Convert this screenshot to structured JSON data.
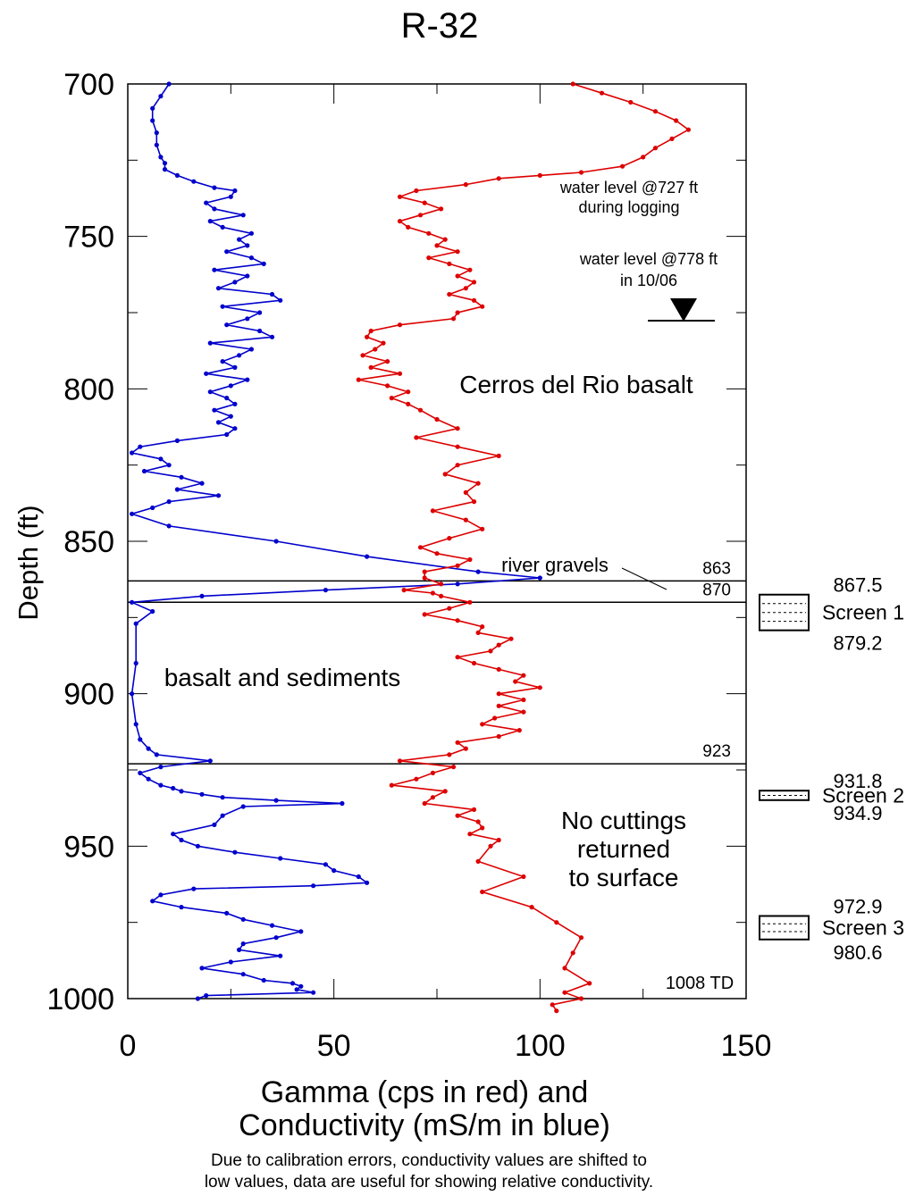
{
  "chart_data": {
    "type": "line",
    "title": "R-32",
    "xlabel_line1": "Gamma (cps in red) and",
    "xlabel_line2": "Conductivity (mS/m in blue)",
    "ylabel": "Depth (ft)",
    "xlim": [
      0,
      150
    ],
    "ylim": [
      700,
      1000
    ],
    "y_inverted": true,
    "x_ticks": [
      "0",
      "50",
      "100",
      "150"
    ],
    "y_ticks": [
      "700",
      "750",
      "800",
      "850",
      "900",
      "950",
      "1000"
    ],
    "colors": {
      "gamma": "#dd0000",
      "conductivity": "#0000cc",
      "axis": "#000000"
    },
    "series": [
      {
        "key": "conductivity",
        "x": [
          10,
          8,
          6,
          6,
          7,
          7,
          8,
          9,
          9,
          12,
          16,
          21,
          26,
          25,
          19,
          21,
          28,
          20,
          23,
          30,
          27,
          29,
          24,
          30,
          33,
          21,
          29,
          26,
          22,
          35,
          37,
          23,
          32,
          29,
          24,
          32,
          35,
          20,
          30,
          27,
          23,
          26,
          19,
          29,
          25,
          20,
          24,
          26,
          21,
          25,
          22,
          26,
          24,
          12,
          3,
          1,
          8,
          10,
          4,
          13,
          18,
          12,
          22,
          10,
          6,
          1,
          10,
          36,
          58,
          85,
          100,
          80,
          48,
          18,
          1,
          6,
          2,
          2,
          1,
          2,
          3,
          5,
          7,
          20,
          8,
          3,
          5,
          8,
          11,
          13,
          18,
          23,
          36,
          52,
          28,
          23,
          21,
          11,
          13,
          17,
          26,
          37,
          48,
          50,
          56,
          58,
          45,
          16,
          8,
          6,
          13,
          24,
          28,
          35,
          42,
          36,
          28,
          27,
          37,
          25,
          18,
          28,
          33,
          40,
          42,
          41,
          45,
          19,
          17
        ],
        "y": [
          700,
          704,
          708,
          712,
          716,
          720,
          724,
          726,
          728,
          730,
          732,
          734,
          735,
          737,
          739,
          741,
          743,
          745,
          747,
          749,
          751,
          753,
          755,
          757,
          759,
          761,
          763,
          765,
          767,
          769,
          771,
          773,
          775,
          777,
          779,
          781,
          783,
          785,
          787,
          789,
          791,
          793,
          795,
          797,
          799,
          801,
          803,
          805,
          807,
          809,
          811,
          813,
          815,
          817,
          819,
          821,
          823,
          825,
          827,
          829,
          831,
          833,
          835,
          837,
          839,
          841,
          845,
          850,
          855,
          860,
          862,
          864,
          866,
          868,
          870,
          873,
          877,
          890,
          900,
          910,
          915,
          918,
          920,
          922,
          924,
          926,
          928,
          930,
          931,
          932,
          933,
          934,
          935,
          936,
          937,
          940,
          943,
          946,
          948,
          950,
          952,
          954,
          956,
          958,
          960,
          962,
          963,
          964,
          966,
          968,
          970,
          972,
          974,
          976,
          978,
          980,
          982,
          984,
          986,
          988,
          990,
          992,
          994,
          995,
          996,
          997,
          998,
          999,
          1000
        ]
      },
      {
        "key": "gamma",
        "x": [
          108,
          115,
          122,
          128,
          133,
          136,
          132,
          128,
          125,
          120,
          110,
          100,
          90,
          82,
          70,
          66,
          72,
          76,
          71,
          66,
          68,
          73,
          77,
          75,
          80,
          73,
          78,
          83,
          80,
          84,
          82,
          78,
          84,
          86,
          80,
          79,
          66,
          59,
          58,
          62,
          60,
          57,
          63,
          59,
          66,
          56,
          63,
          68,
          64,
          68,
          71,
          75,
          80,
          70,
          80,
          90,
          80,
          77,
          85,
          82,
          84,
          74,
          82,
          86,
          78,
          71,
          75,
          83,
          80,
          72,
          72,
          76,
          67,
          74,
          76,
          83,
          78,
          72,
          80,
          86,
          85,
          93,
          90,
          88,
          80,
          84,
          90,
          96,
          94,
          100,
          90,
          96,
          90,
          96,
          89,
          86,
          95,
          90,
          80,
          82,
          78,
          66,
          79,
          74,
          70,
          64,
          77,
          74,
          72,
          84,
          80,
          85,
          86,
          83,
          90,
          88,
          85,
          96,
          86,
          98,
          104,
          110,
          108,
          106,
          112,
          106,
          110,
          103,
          104
        ],
        "y": [
          700,
          703,
          706,
          709,
          712,
          715,
          718,
          721,
          724,
          727,
          729,
          730,
          731,
          733,
          735,
          737,
          739,
          741,
          743,
          745,
          747,
          749,
          751,
          753,
          755,
          757,
          759,
          761,
          763,
          765,
          767,
          769,
          771,
          773,
          775,
          777,
          779,
          781,
          783,
          785,
          787,
          789,
          791,
          793,
          795,
          797,
          799,
          801,
          803,
          805,
          807,
          810,
          813,
          816,
          819,
          822,
          825,
          828,
          831,
          834,
          837,
          840,
          843,
          846,
          849,
          852,
          854,
          856,
          858,
          860,
          862,
          864,
          866,
          867,
          868,
          870,
          872,
          874,
          876,
          878,
          880,
          882,
          884,
          886,
          888,
          890,
          892,
          894,
          896,
          898,
          900,
          902,
          904,
          906,
          908,
          910,
          912,
          914,
          916,
          918,
          920,
          922,
          924,
          926,
          928,
          930,
          932,
          934,
          936,
          938,
          940,
          942,
          944,
          946,
          948,
          950,
          955,
          960,
          965,
          970,
          975,
          980,
          985,
          990,
          995,
          998,
          1000,
          1002,
          1004
        ]
      }
    ],
    "horizontal_lines": [
      {
        "depth": 863,
        "label": "863"
      },
      {
        "depth": 870,
        "label": "870"
      },
      {
        "depth": 923,
        "label": "923"
      }
    ],
    "annotations": {
      "water_level_logging_1": "water level @727 ft",
      "water_level_logging_2": "during logging",
      "water_level_current_1": "water level @778 ft",
      "water_level_current_2": "in 10/06",
      "cerros": "Cerros del Rio basalt",
      "river_gravels": "river gravels",
      "basalt_sediments": "basalt and sediments",
      "no_cuttings_1": "No cuttings",
      "no_cuttings_2": "returned",
      "no_cuttings_3": "to surface",
      "td": "1008 TD"
    },
    "water_level_depth": 778,
    "screens": [
      {
        "name": "Screen 1",
        "top": 867.5,
        "bottom": 879.2,
        "top_label": "867.5",
        "bottom_label": "879.2"
      },
      {
        "name": "Screen 2",
        "top": 931.8,
        "bottom": 934.9,
        "top_label": "931.8",
        "bottom_label": "934.9"
      },
      {
        "name": "Screen 3",
        "top": 972.9,
        "bottom": 980.6,
        "top_label": "972.9",
        "bottom_label": "980.6"
      }
    ]
  },
  "note": {
    "line1": "Due to calibration errors, conductivity values are shifted to",
    "line2": "low values, data are useful for showing relative conductivity."
  }
}
